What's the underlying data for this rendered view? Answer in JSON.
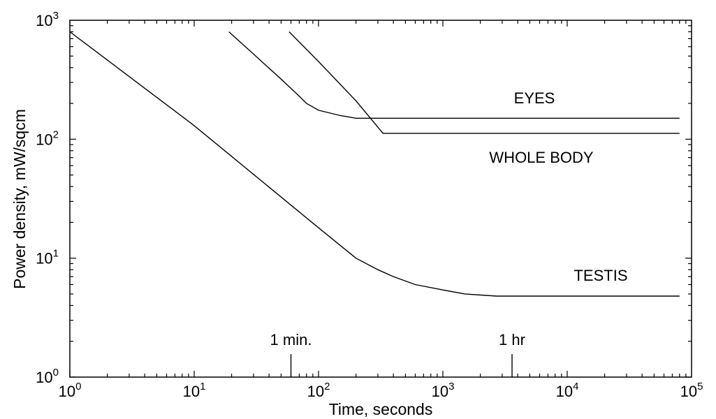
{
  "chart_data": {
    "type": "line",
    "title": "",
    "xlabel": "Time, seconds",
    "ylabel": "Power density, mW/sqcm",
    "xscale": "log",
    "yscale": "log",
    "xlim": [
      1,
      100000
    ],
    "ylim": [
      1,
      1000
    ],
    "grid": false,
    "x_ticks": [
      {
        "base": "10",
        "exp": "0",
        "value": 1
      },
      {
        "base": "10",
        "exp": "1",
        "value": 10
      },
      {
        "base": "10",
        "exp": "2",
        "value": 100
      },
      {
        "base": "10",
        "exp": "3",
        "value": 1000
      },
      {
        "base": "10",
        "exp": "4",
        "value": 10000
      },
      {
        "base": "10",
        "exp": "5",
        "value": 100000
      }
    ],
    "y_ticks": [
      {
        "base": "10",
        "exp": "0",
        "value": 1
      },
      {
        "base": "10",
        "exp": "1",
        "value": 10
      },
      {
        "base": "10",
        "exp": "2",
        "value": 100
      },
      {
        "base": "10",
        "exp": "3",
        "value": 1000
      }
    ],
    "series": [
      {
        "name": "EYES",
        "x": [
          19,
          30,
          50,
          70,
          80,
          100,
          150,
          200,
          300,
          1000,
          10000,
          80000
        ],
        "y": [
          800,
          520,
          320,
          230,
          200,
          175,
          158,
          150,
          150,
          150,
          150,
          150
        ]
      },
      {
        "name": "WHOLE BODY",
        "x": [
          58,
          100,
          200,
          330,
          1000,
          10000,
          80000
        ],
        "y": [
          800,
          450,
          210,
          112,
          112,
          112,
          112
        ]
      },
      {
        "name": "TESTIS",
        "x": [
          1,
          10,
          100,
          200,
          300,
          400,
          600,
          1000,
          1500,
          2700,
          10000,
          80000
        ],
        "y": [
          800,
          130,
          18,
          10,
          8,
          7,
          6,
          5.4,
          5,
          4.8,
          4.8,
          4.8
        ]
      }
    ],
    "annotations": [
      {
        "text": "1 min.",
        "x": 60
      },
      {
        "text": "1 hr",
        "x": 3600
      }
    ]
  }
}
